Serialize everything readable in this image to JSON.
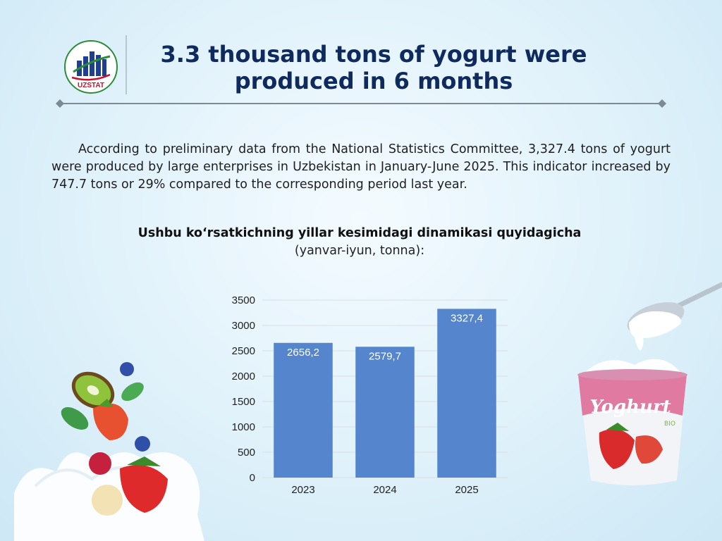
{
  "header": {
    "logo_text": "UZSTAT",
    "title_line1": "3.3 thousand tons of yogurt were",
    "title_line2": "produced in 6 months"
  },
  "body": {
    "paragraph": "According to preliminary data from the National Statistics Committee, 3,327.4 tons of yogurt were produced by large enterprises in Uzbekistan in January-June 2025. This indicator increased by 747.7 tons or 29% compared to the corresponding period last year."
  },
  "chart_heading": "Ushbu koʻrsatkichning yillar kesimidagi dinamikasi quyidagicha",
  "chart_subheading": "(yanvar-iyun, tonna):",
  "decor": {
    "cup_label": "Yoghurt",
    "cup_sublabel": "BIO"
  },
  "colors": {
    "bar": "#5585cd",
    "title": "#0f2a5c",
    "grid": "#d9dde2"
  },
  "chart_data": {
    "type": "bar",
    "title": "",
    "xlabel": "",
    "ylabel": "",
    "categories": [
      "2023",
      "2024",
      "2025"
    ],
    "values": [
      2656.2,
      2579.7,
      3327.4
    ],
    "data_labels": [
      "2656,2",
      "2579,7",
      "3327,4"
    ],
    "ylim": [
      0,
      3500
    ],
    "yticks": [
      0,
      500,
      1000,
      1500,
      2000,
      2500,
      3000,
      3500
    ],
    "grid": true,
    "legend": "none"
  }
}
